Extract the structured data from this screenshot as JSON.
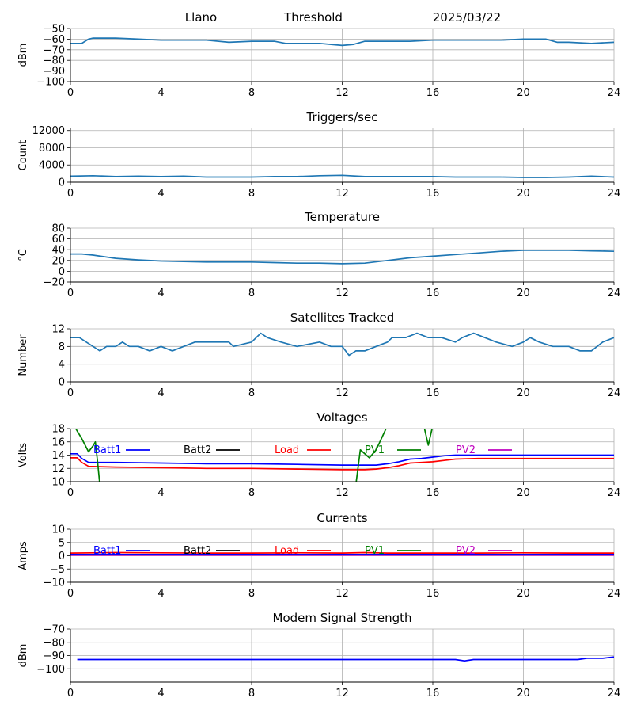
{
  "header": {
    "site": "Llano",
    "mode": "Threshold",
    "date": "2025/03/22"
  },
  "chart_data": [
    {
      "type": "line",
      "title": "",
      "ylabel": "dBm",
      "xlim": [
        0,
        24
      ],
      "xticks": [
        0,
        4,
        8,
        12,
        16,
        20,
        24
      ],
      "ylim": [
        -100,
        -50
      ],
      "yticks": [
        -100,
        -90,
        -80,
        -70,
        -60,
        -50
      ],
      "grid": true,
      "series": [
        {
          "color": "#1f77b4",
          "x": [
            0,
            0.5,
            0.8,
            1,
            2,
            3,
            4,
            5,
            6,
            7,
            8,
            9,
            9.5,
            10,
            11,
            11.5,
            12,
            12.5,
            13,
            14,
            15,
            16,
            17,
            18,
            19,
            20,
            21,
            21.5,
            22,
            23,
            24
          ],
          "y": [
            -64,
            -64,
            -60,
            -59,
            -59,
            -60,
            -61,
            -61,
            -61,
            -63,
            -62,
            -62,
            -64,
            -64,
            -64,
            -65,
            -66,
            -65,
            -62,
            -62,
            -62,
            -61,
            -61,
            -61,
            -61,
            -60,
            -60,
            -63,
            -63,
            -64,
            -63
          ]
        }
      ]
    },
    {
      "type": "line",
      "title": "Triggers/sec",
      "ylabel": "Count",
      "xlim": [
        0,
        24
      ],
      "xticks": [
        0,
        4,
        8,
        12,
        16,
        20,
        24
      ],
      "ylim": [
        0,
        12500
      ],
      "yticks": [
        0,
        4000,
        8000,
        12000
      ],
      "grid": true,
      "series": [
        {
          "color": "#1f77b4",
          "x": [
            0,
            1,
            2,
            3,
            4,
            5,
            6,
            7,
            8,
            9,
            10,
            11,
            12,
            13,
            14,
            15,
            16,
            17,
            18,
            19,
            20,
            21,
            22,
            23,
            24
          ],
          "y": [
            1400,
            1500,
            1300,
            1400,
            1300,
            1400,
            1200,
            1200,
            1200,
            1300,
            1300,
            1500,
            1600,
            1300,
            1300,
            1300,
            1300,
            1200,
            1200,
            1200,
            1100,
            1100,
            1200,
            1400,
            1200
          ]
        }
      ]
    },
    {
      "type": "line",
      "title": "Temperature",
      "ylabel": "°C",
      "xlim": [
        0,
        24
      ],
      "xticks": [
        0,
        4,
        8,
        12,
        16,
        20,
        24
      ],
      "ylim": [
        -20,
        80
      ],
      "yticks": [
        -20,
        0,
        20,
        40,
        60,
        80
      ],
      "grid": true,
      "series": [
        {
          "color": "#1f77b4",
          "x": [
            0,
            0.5,
            1,
            2,
            3,
            4,
            5,
            6,
            7,
            8,
            9,
            10,
            11,
            12,
            13,
            14,
            15,
            16,
            17,
            18,
            19,
            20,
            21,
            22,
            23,
            24
          ],
          "y": [
            32,
            32,
            30,
            24,
            21,
            19,
            18,
            17,
            17,
            17,
            16,
            15,
            15,
            14,
            15,
            20,
            25,
            28,
            31,
            34,
            37,
            39,
            39,
            39,
            38,
            37
          ]
        }
      ]
    },
    {
      "type": "line",
      "title": "Satellites Tracked",
      "ylabel": "Number",
      "xlim": [
        0,
        24
      ],
      "xticks": [
        0,
        4,
        8,
        12,
        16,
        20,
        24
      ],
      "ylim": [
        0,
        12
      ],
      "yticks": [
        0,
        4,
        8,
        12
      ],
      "grid": true,
      "series": [
        {
          "color": "#1f77b4",
          "x": [
            0,
            0.4,
            0.7,
            1,
            1.3,
            1.6,
            2,
            2.3,
            2.6,
            3,
            3.5,
            4,
            4.5,
            5,
            5.5,
            6,
            7,
            7.2,
            8,
            8.4,
            8.7,
            9.3,
            10,
            11,
            11.5,
            12,
            12.3,
            12.6,
            13,
            13.5,
            14,
            14.2,
            14.8,
            15.3,
            15.8,
            16.4,
            17,
            17.3,
            17.8,
            18.3,
            18.8,
            19.5,
            20,
            20.3,
            20.7,
            21.3,
            22,
            22.5,
            23,
            23.5,
            24
          ],
          "y": [
            10,
            10,
            9,
            8,
            7,
            8,
            8,
            9,
            8,
            8,
            7,
            8,
            7,
            8,
            9,
            9,
            9,
            8,
            9,
            11,
            10,
            9,
            8,
            9,
            8,
            8,
            6,
            7,
            7,
            8,
            9,
            10,
            10,
            11,
            10,
            10,
            9,
            10,
            11,
            10,
            9,
            8,
            9,
            10,
            9,
            8,
            8,
            7,
            7,
            9,
            10
          ]
        }
      ]
    },
    {
      "type": "line",
      "title": "Voltages",
      "ylabel": "Volts",
      "xlim": [
        0,
        24
      ],
      "xticks": [
        0,
        4,
        8,
        12,
        16,
        20,
        24
      ],
      "ylim": [
        10,
        18
      ],
      "yticks": [
        10,
        12,
        14,
        16,
        18
      ],
      "grid": true,
      "series": [
        {
          "name": "Batt1",
          "color": "#0000ff",
          "x": [
            0,
            0.3,
            0.5,
            0.8,
            2,
            4,
            6,
            8,
            10,
            12,
            13,
            13.5,
            14,
            14.5,
            15,
            15.5,
            16,
            16.5,
            17,
            18,
            20,
            22,
            24
          ],
          "y": [
            14.2,
            14.2,
            13.5,
            12.9,
            12.9,
            12.8,
            12.7,
            12.7,
            12.6,
            12.5,
            12.5,
            12.5,
            12.7,
            13.0,
            13.4,
            13.5,
            13.7,
            13.9,
            14.0,
            14.0,
            14.0,
            14.0,
            14.0
          ]
        },
        {
          "name": "Batt2",
          "color": "#000000",
          "x": [],
          "y": []
        },
        {
          "name": "Load",
          "color": "#ff0000",
          "x": [
            0,
            0.3,
            0.5,
            0.8,
            2,
            4,
            6,
            8,
            10,
            12,
            13,
            13.5,
            14,
            14.5,
            15,
            15.5,
            16,
            16.5,
            17,
            18,
            20,
            22,
            24
          ],
          "y": [
            13.6,
            13.6,
            12.9,
            12.3,
            12.2,
            12.1,
            12.0,
            12.0,
            11.9,
            11.8,
            11.8,
            11.9,
            12.1,
            12.4,
            12.8,
            12.9,
            13.0,
            13.2,
            13.4,
            13.5,
            13.5,
            13.5,
            13.5
          ]
        },
        {
          "name": "PV1",
          "color": "#008000",
          "x": [
            0.2,
            0.5,
            0.8,
            1.0,
            1.1,
            1.2,
            1.3,
            12.6,
            12.8,
            13.0,
            13.2,
            13.5,
            13.8,
            14.0,
            15.6,
            15.8,
            16.0
          ],
          "y": [
            18.2,
            16.5,
            14.5,
            15.4,
            16.0,
            13.0,
            9.5,
            9.5,
            14.8,
            14.2,
            13.6,
            14.8,
            17.0,
            18.5,
            18.5,
            15.5,
            18.5
          ]
        },
        {
          "name": "PV2",
          "color": "#bf00bf",
          "x": [],
          "y": []
        }
      ]
    },
    {
      "type": "line",
      "title": "Currents",
      "ylabel": "Amps",
      "xlim": [
        0,
        24
      ],
      "xticks": [
        0,
        4,
        8,
        12,
        16,
        20,
        24
      ],
      "ylim": [
        -10,
        10
      ],
      "yticks": [
        -10,
        -5,
        0,
        5,
        10
      ],
      "grid": true,
      "series": [
        {
          "name": "Batt1",
          "color": "#0000ff",
          "x": [
            0,
            24
          ],
          "y": [
            0.5,
            0.5
          ]
        },
        {
          "name": "Batt2",
          "color": "#000000",
          "x": [],
          "y": []
        },
        {
          "name": "Load",
          "color": "#ff0000",
          "x": [
            0,
            2,
            4,
            6,
            8,
            10,
            12,
            13,
            14,
            16,
            18,
            20,
            22,
            24
          ],
          "y": [
            1.0,
            1.2,
            1.1,
            1.0,
            1.0,
            1.1,
            1.0,
            1.2,
            1.0,
            1.0,
            1.0,
            1.1,
            1.0,
            1.0
          ]
        },
        {
          "name": "PV1",
          "color": "#008000",
          "x": [],
          "y": []
        },
        {
          "name": "PV2",
          "color": "#bf00bf",
          "x": [
            0,
            24
          ],
          "y": [
            0.2,
            0.2
          ]
        }
      ]
    },
    {
      "type": "line",
      "title": "Modem Signal Strength",
      "ylabel": "dBm",
      "xlim": [
        0,
        24
      ],
      "xticks": [
        0,
        4,
        8,
        12,
        16,
        20,
        24
      ],
      "ylim": [
        -110,
        -70
      ],
      "yticks": [
        -100,
        -90,
        -80,
        -70
      ],
      "grid": true,
      "series": [
        {
          "color": "#0000ff",
          "x": [
            0.3,
            17,
            17.4,
            17.8,
            22.4,
            22.8,
            23.5,
            24
          ],
          "y": [
            -93,
            -93,
            -94,
            -93,
            -93,
            -92,
            -92,
            -91
          ]
        }
      ]
    }
  ]
}
